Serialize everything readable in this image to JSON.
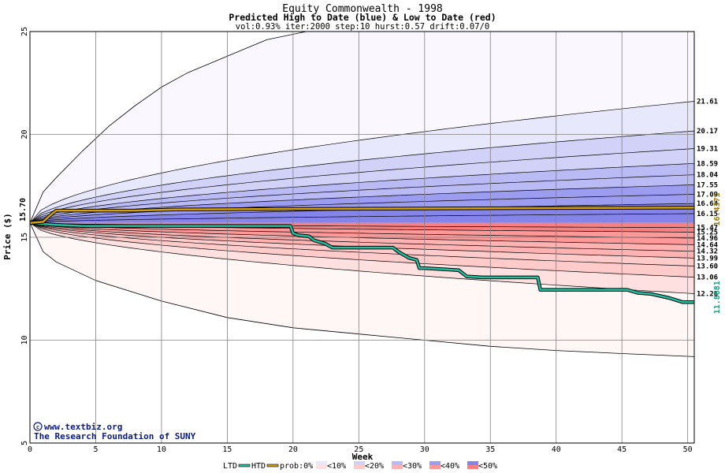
{
  "chart_data": {
    "type": "area",
    "title": "Equity Commonwealth - 1998",
    "subtitle": "Predicted High to Date (blue) &  Low to Date (red)",
    "params": "vol:0.93% iter:2000 step:10 hurst:0.57 drift:0.07/0",
    "xlabel": "Week",
    "ylabel": "Price ($)",
    "xlim": [
      0,
      50.5
    ],
    "ylim": [
      5,
      25
    ],
    "x_ticks": [
      0,
      5,
      10,
      15,
      20,
      25,
      30,
      35,
      40,
      45,
      50
    ],
    "y_ticks": [
      5,
      10,
      15,
      20,
      25
    ],
    "start_price": 15.7,
    "start_label": "15.70",
    "envelope_upper": [
      [
        0,
        15.7
      ],
      [
        1,
        17.2
      ],
      [
        2,
        17.9
      ],
      [
        4,
        19.2
      ],
      [
        6,
        20.4
      ],
      [
        8,
        21.4
      ],
      [
        10,
        22.3
      ],
      [
        12,
        23.0
      ],
      [
        15,
        23.8
      ],
      [
        18,
        24.6
      ],
      [
        21,
        25.0
      ]
    ],
    "envelope_lower": [
      [
        0,
        15.7
      ],
      [
        1,
        14.3
      ],
      [
        2,
        13.8
      ],
      [
        5,
        12.9
      ],
      [
        10,
        11.9
      ],
      [
        15,
        11.1
      ],
      [
        20,
        10.6
      ],
      [
        25,
        10.3
      ],
      [
        30,
        10.0
      ],
      [
        35,
        9.7
      ],
      [
        40,
        9.5
      ],
      [
        45,
        9.35
      ],
      [
        50.5,
        9.2
      ]
    ],
    "upper_quantiles": [
      21.61,
      20.17,
      19.31,
      18.59,
      18.04,
      17.55,
      17.09,
      16.64,
      16.15
    ],
    "lower_quantiles": [
      15.47,
      15.25,
      14.96,
      14.64,
      14.32,
      13.99,
      13.6,
      13.06,
      12.26
    ],
    "upper_labels": [
      "21.61",
      "20.17",
      "19.31",
      "18.59",
      "18.04",
      "17.55",
      "17.09",
      "16.64",
      "16.15"
    ],
    "lower_labels": [
      "15.47",
      "15.25",
      "14.96",
      "14.64",
      "14.32",
      "13.99",
      "13.60",
      "13.06",
      "12.26"
    ],
    "series": [
      {
        "name": "LTD",
        "color": "#22c0a0",
        "points": [
          [
            0,
            15.7
          ],
          [
            2,
            15.6
          ],
          [
            4,
            15.55
          ],
          [
            8,
            15.55
          ],
          [
            12,
            15.55
          ],
          [
            16,
            15.55
          ],
          [
            19.8,
            15.55
          ],
          [
            20,
            15.2
          ],
          [
            20.4,
            15.1
          ],
          [
            21.2,
            15.05
          ],
          [
            21.6,
            14.85
          ],
          [
            22.4,
            14.7
          ],
          [
            23,
            14.5
          ],
          [
            27.6,
            14.5
          ],
          [
            28,
            14.3
          ],
          [
            28.8,
            14.0
          ],
          [
            29.4,
            13.9
          ],
          [
            29.6,
            13.5
          ],
          [
            30,
            13.5
          ],
          [
            32.6,
            13.4
          ],
          [
            33.2,
            13.1
          ],
          [
            34.4,
            13.05
          ],
          [
            38.6,
            13.05
          ],
          [
            38.8,
            12.45
          ],
          [
            45.4,
            12.45
          ],
          [
            46.2,
            12.3
          ],
          [
            47.2,
            12.25
          ],
          [
            48.6,
            12.05
          ],
          [
            49.6,
            11.85
          ],
          [
            50.5,
            11.85
          ]
        ]
      },
      {
        "name": "HTD",
        "color": "#d4a010",
        "points": [
          [
            0,
            15.7
          ],
          [
            1,
            15.75
          ],
          [
            1.6,
            16.1
          ],
          [
            2,
            16.3
          ],
          [
            8,
            16.3
          ],
          [
            11,
            16.35
          ],
          [
            20,
            16.38
          ],
          [
            30,
            16.4
          ],
          [
            40,
            16.42
          ],
          [
            50.5,
            16.44
          ]
        ]
      }
    ],
    "end_labels": {
      "htd": "16.4371",
      "ltd": "11.8681"
    },
    "colors": {
      "p0": "#fbf7ff",
      "p10": "#e8e8fc",
      "p20": "#d2d2f8",
      "p30": "#babaf4",
      "p40": "#9c9cf0",
      "p50": "#8484ea",
      "r0": "#fff6f6",
      "r10": "#ffe0e0",
      "r20": "#ffcaca",
      "r30": "#ffb2b2",
      "r40": "#ff9898",
      "r50": "#f88080",
      "ltd": "#22c0a0",
      "htd": "#d4a010",
      "grid": "#808080"
    },
    "legend": {
      "items": [
        "LTD",
        "HTD",
        "prob:0%",
        "<10%",
        "<20%",
        "<30%",
        "<40%",
        "<50%"
      ],
      "placement": "bottom"
    }
  },
  "credits": {
    "line1": "www.textbiz.org",
    "line2": "The Research Foundation of SUNY"
  }
}
